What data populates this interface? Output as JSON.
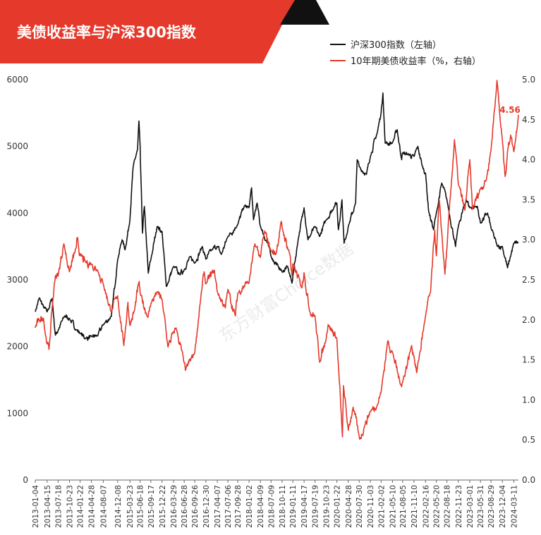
{
  "title": "美债收益率与沪深300指数",
  "watermark": "东方财富Choice数据",
  "colors": {
    "title_bg": "#e4392b",
    "left_series": "#111111",
    "right_series": "#e4392b",
    "end_label": "#e4392b",
    "axis": "#666666"
  },
  "chart_data": {
    "type": "line",
    "title": "美债收益率与沪深300指数",
    "legend_placement": "top-right",
    "grid": false,
    "x_start": "2013-01-04",
    "x_end": "2024-04-19",
    "x_tick_labels": [
      "2013-01-04",
      "2013-04-15",
      "2013-07-18",
      "2013-10-23",
      "2014-01-22",
      "2014-04-28",
      "2014-08-07",
      "2014-12-08",
      "2015-03-23",
      "2015-06-18",
      "2015-09-17",
      "2015-12-22",
      "2016-03-29",
      "2016-06-28",
      "2016-09-26",
      "2016-12-30",
      "2017-04-07",
      "2017-07-06",
      "2017-09-28",
      "2018-01-02",
      "2018-04-09",
      "2018-07-09",
      "2018-10-11",
      "2019-01-11",
      "2019-04-17",
      "2019-07-19",
      "2019-10-23",
      "2020-01-22",
      "2020-04-28",
      "2020-07-30",
      "2020-11-03",
      "2021-02-02",
      "2021-05-10",
      "2021-08-05",
      "2021-11-10",
      "2022-02-16",
      "2022-05-20",
      "2022-08-18",
      "2022-11-23",
      "2023-03-01",
      "2023-05-31",
      "2023-08-29",
      "2023-12-04",
      "2024-03-11"
    ],
    "y_left": {
      "ylim": [
        0,
        6000
      ],
      "ticks": [
        "0",
        "1000",
        "2000",
        "3000",
        "4000",
        "5000",
        "6000"
      ]
    },
    "y_right": {
      "ylim": [
        0,
        5
      ],
      "ticks": [
        "0.0",
        "0.5",
        "1.0",
        "1.5",
        "2.0",
        "2.5",
        "3.0",
        "3.5",
        "4.0",
        "4.5",
        "5.0"
      ]
    },
    "series": [
      {
        "name": "沪深300指数（左轴）",
        "axis": "left",
        "points": [
          [
            "2013-01-04",
            2520
          ],
          [
            "2013-02-08",
            2730
          ],
          [
            "2013-03-15",
            2600
          ],
          [
            "2013-04-15",
            2520
          ],
          [
            "2013-05-28",
            2720
          ],
          [
            "2013-06-25",
            2170
          ],
          [
            "2013-07-18",
            2240
          ],
          [
            "2013-09-12",
            2460
          ],
          [
            "2013-10-23",
            2420
          ],
          [
            "2013-12-20",
            2250
          ],
          [
            "2014-01-22",
            2200
          ],
          [
            "2014-03-10",
            2120
          ],
          [
            "2014-04-28",
            2150
          ],
          [
            "2014-06-20",
            2160
          ],
          [
            "2014-08-07",
            2330
          ],
          [
            "2014-10-15",
            2450
          ],
          [
            "2014-12-08",
            3300
          ],
          [
            "2015-01-15",
            3600
          ],
          [
            "2015-02-10",
            3450
          ],
          [
            "2015-03-23",
            3900
          ],
          [
            "2015-04-20",
            4700
          ],
          [
            "2015-05-27",
            4950
          ],
          [
            "2015-06-08",
            5380
          ],
          [
            "2015-06-18",
            5000
          ],
          [
            "2015-07-08",
            3700
          ],
          [
            "2015-07-24",
            4100
          ],
          [
            "2015-08-26",
            3100
          ],
          [
            "2015-09-17",
            3300
          ],
          [
            "2015-11-10",
            3800
          ],
          [
            "2015-12-22",
            3720
          ],
          [
            "2016-01-28",
            2900
          ],
          [
            "2016-03-29",
            3200
          ],
          [
            "2016-05-20",
            3080
          ],
          [
            "2016-06-28",
            3150
          ],
          [
            "2016-08-20",
            3350
          ],
          [
            "2016-09-26",
            3250
          ],
          [
            "2016-11-30",
            3500
          ],
          [
            "2016-12-30",
            3310
          ],
          [
            "2017-02-20",
            3450
          ],
          [
            "2017-04-07",
            3500
          ],
          [
            "2017-05-10",
            3380
          ],
          [
            "2017-07-06",
            3650
          ],
          [
            "2017-09-28",
            3830
          ],
          [
            "2017-11-22",
            4100
          ],
          [
            "2018-01-02",
            4080
          ],
          [
            "2018-01-24",
            4380
          ],
          [
            "2018-02-09",
            3900
          ],
          [
            "2018-03-12",
            4150
          ],
          [
            "2018-04-09",
            3800
          ],
          [
            "2018-06-20",
            3500
          ],
          [
            "2018-07-09",
            3350
          ],
          [
            "2018-09-10",
            3200
          ],
          [
            "2018-10-11",
            3120
          ],
          [
            "2018-11-28",
            3200
          ],
          [
            "2019-01-03",
            2950
          ],
          [
            "2019-01-11",
            3060
          ],
          [
            "2019-02-25",
            3600
          ],
          [
            "2019-04-17",
            4080
          ],
          [
            "2019-05-20",
            3600
          ],
          [
            "2019-07-19",
            3800
          ],
          [
            "2019-08-26",
            3650
          ],
          [
            "2019-10-23",
            3900
          ],
          [
            "2019-12-31",
            4100
          ],
          [
            "2020-01-22",
            4150
          ],
          [
            "2020-02-04",
            3750
          ],
          [
            "2020-03-05",
            4200
          ],
          [
            "2020-03-23",
            3550
          ],
          [
            "2020-04-28",
            3800
          ],
          [
            "2020-06-30",
            4150
          ],
          [
            "2020-07-13",
            4800
          ],
          [
            "2020-07-30",
            4700
          ],
          [
            "2020-09-30",
            4580
          ],
          [
            "2020-11-03",
            4850
          ],
          [
            "2020-12-31",
            5200
          ],
          [
            "2021-02-02",
            5500
          ],
          [
            "2021-02-18",
            5800
          ],
          [
            "2021-03-09",
            5050
          ],
          [
            "2021-05-10",
            5050
          ],
          [
            "2021-06-20",
            5250
          ],
          [
            "2021-07-28",
            4800
          ],
          [
            "2021-08-05",
            4900
          ],
          [
            "2021-09-15",
            4880
          ],
          [
            "2021-11-10",
            4850
          ],
          [
            "2021-12-13",
            5000
          ],
          [
            "2022-01-20",
            4700
          ],
          [
            "2022-02-16",
            4600
          ],
          [
            "2022-03-15",
            4030
          ],
          [
            "2022-04-26",
            3750
          ],
          [
            "2022-05-20",
            4000
          ],
          [
            "2022-07-05",
            4450
          ],
          [
            "2022-08-18",
            4200
          ],
          [
            "2022-10-31",
            3500
          ],
          [
            "2022-11-23",
            3800
          ],
          [
            "2023-01-30",
            4200
          ],
          [
            "2023-03-01",
            4080
          ],
          [
            "2023-05-05",
            4100
          ],
          [
            "2023-05-31",
            3850
          ],
          [
            "2023-07-31",
            4000
          ],
          [
            "2023-08-29",
            3780
          ],
          [
            "2023-10-23",
            3500
          ],
          [
            "2023-12-04",
            3500
          ],
          [
            "2024-01-17",
            3180
          ],
          [
            "2024-02-05",
            3300
          ],
          [
            "2024-03-11",
            3550
          ],
          [
            "2024-04-19",
            3560
          ]
        ]
      },
      {
        "name": "10年期美债收益率（%，右轴）",
        "axis": "right",
        "points": [
          [
            "2013-01-04",
            1.9
          ],
          [
            "2013-02-08",
            2.0
          ],
          [
            "2013-03-15",
            2.02
          ],
          [
            "2013-04-15",
            1.7
          ],
          [
            "2013-05-01",
            1.63
          ],
          [
            "2013-05-28",
            2.15
          ],
          [
            "2013-06-25",
            2.55
          ],
          [
            "2013-07-18",
            2.55
          ],
          [
            "2013-09-05",
            2.95
          ],
          [
            "2013-10-23",
            2.6
          ],
          [
            "2013-12-20",
            2.9
          ],
          [
            "2013-12-31",
            3.03
          ],
          [
            "2014-01-22",
            2.8
          ],
          [
            "2014-03-10",
            2.72
          ],
          [
            "2014-04-28",
            2.7
          ],
          [
            "2014-06-20",
            2.62
          ],
          [
            "2014-08-07",
            2.45
          ],
          [
            "2014-10-15",
            2.1
          ],
          [
            "2014-12-08",
            2.3
          ],
          [
            "2015-01-30",
            1.68
          ],
          [
            "2015-03-06",
            2.22
          ],
          [
            "2015-03-23",
            1.93
          ],
          [
            "2015-05-01",
            2.12
          ],
          [
            "2015-06-10",
            2.48
          ],
          [
            "2015-06-18",
            2.33
          ],
          [
            "2015-08-24",
            2.03
          ],
          [
            "2015-09-17",
            2.2
          ],
          [
            "2015-11-10",
            2.35
          ],
          [
            "2015-12-22",
            2.25
          ],
          [
            "2016-02-11",
            1.66
          ],
          [
            "2016-03-29",
            1.85
          ],
          [
            "2016-04-20",
            1.9
          ],
          [
            "2016-06-28",
            1.46
          ],
          [
            "2016-07-08",
            1.37
          ],
          [
            "2016-09-26",
            1.59
          ],
          [
            "2016-11-15",
            2.25
          ],
          [
            "2016-12-15",
            2.6
          ],
          [
            "2016-12-30",
            2.45
          ],
          [
            "2017-03-13",
            2.62
          ],
          [
            "2017-04-07",
            2.35
          ],
          [
            "2017-06-14",
            2.15
          ],
          [
            "2017-07-06",
            2.38
          ],
          [
            "2017-09-08",
            2.05
          ],
          [
            "2017-09-28",
            2.33
          ],
          [
            "2017-12-20",
            2.48
          ],
          [
            "2018-01-02",
            2.46
          ],
          [
            "2018-02-21",
            2.95
          ],
          [
            "2018-04-09",
            2.78
          ],
          [
            "2018-05-17",
            3.11
          ],
          [
            "2018-07-09",
            2.86
          ],
          [
            "2018-08-20",
            2.82
          ],
          [
            "2018-10-05",
            3.23
          ],
          [
            "2018-10-11",
            3.15
          ],
          [
            "2018-12-20",
            2.8
          ],
          [
            "2019-01-03",
            2.56
          ],
          [
            "2019-01-11",
            2.7
          ],
          [
            "2019-03-29",
            2.4
          ],
          [
            "2019-04-17",
            2.59
          ],
          [
            "2019-06-05",
            2.1
          ],
          [
            "2019-07-19",
            2.05
          ],
          [
            "2019-08-28",
            1.47
          ],
          [
            "2019-10-23",
            1.77
          ],
          [
            "2019-11-08",
            1.94
          ],
          [
            "2020-01-22",
            1.77
          ],
          [
            "2020-03-09",
            0.54
          ],
          [
            "2020-03-18",
            1.18
          ],
          [
            "2020-04-28",
            0.62
          ],
          [
            "2020-06-08",
            0.91
          ],
          [
            "2020-07-30",
            0.55
          ],
          [
            "2020-08-04",
            0.51
          ],
          [
            "2020-09-15",
            0.68
          ],
          [
            "2020-11-03",
            0.86
          ],
          [
            "2020-12-31",
            0.93
          ],
          [
            "2021-02-02",
            1.1
          ],
          [
            "2021-03-31",
            1.74
          ],
          [
            "2021-05-10",
            1.6
          ],
          [
            "2021-07-19",
            1.19
          ],
          [
            "2021-08-05",
            1.22
          ],
          [
            "2021-10-21",
            1.68
          ],
          [
            "2021-11-10",
            1.55
          ],
          [
            "2021-12-03",
            1.34
          ],
          [
            "2022-02-16",
            2.05
          ],
          [
            "2022-03-31",
            2.35
          ],
          [
            "2022-05-06",
            3.12
          ],
          [
            "2022-05-20",
            2.8
          ],
          [
            "2022-06-14",
            3.49
          ],
          [
            "2022-08-01",
            2.57
          ],
          [
            "2022-08-18",
            2.9
          ],
          [
            "2022-09-30",
            3.8
          ],
          [
            "2022-10-21",
            4.25
          ],
          [
            "2022-11-23",
            3.7
          ],
          [
            "2023-01-18",
            3.37
          ],
          [
            "2023-03-01",
            4.0
          ],
          [
            "2023-03-24",
            3.38
          ],
          [
            "2023-05-31",
            3.64
          ],
          [
            "2023-07-20",
            3.75
          ],
          [
            "2023-08-29",
            4.12
          ],
          [
            "2023-10-19",
            4.99
          ],
          [
            "2023-11-15",
            4.5
          ],
          [
            "2023-12-04",
            4.25
          ],
          [
            "2023-12-27",
            3.79
          ],
          [
            "2024-01-17",
            4.1
          ],
          [
            "2024-02-13",
            4.31
          ],
          [
            "2024-03-11",
            4.1
          ],
          [
            "2024-04-19",
            4.56
          ]
        ]
      }
    ],
    "annotations": [
      {
        "text": "4.56",
        "series": "10年期美债收益率（%，右轴）",
        "x": "2024-04-19",
        "y": 4.56
      }
    ]
  }
}
